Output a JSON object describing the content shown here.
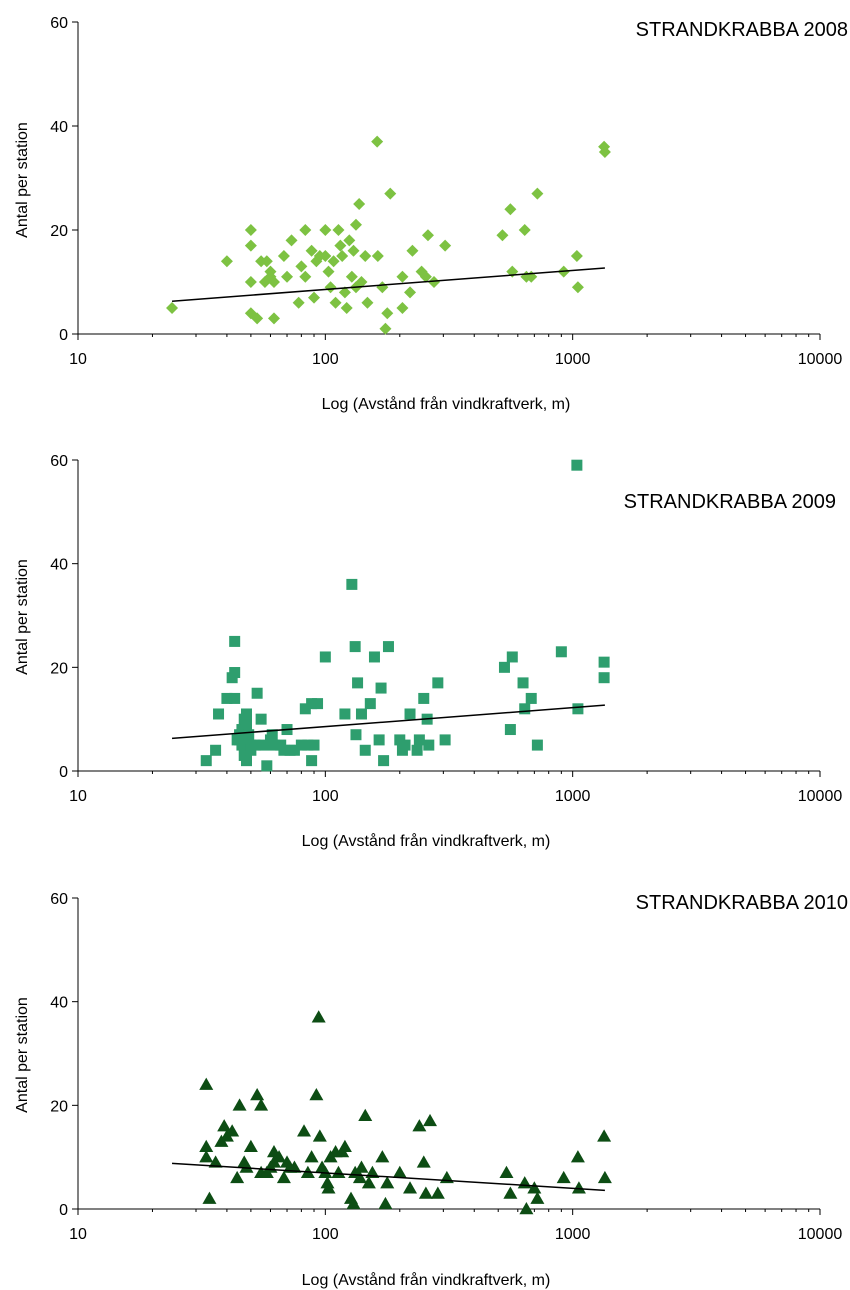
{
  "chart_data": [
    {
      "type": "scatter",
      "title": "STRANDKRABBA 2008",
      "xlabel": "Log (Avstånd från vindkraftverk, m)",
      "ylabel": "Antal per station",
      "x_scale": "log",
      "xlim": [
        10,
        10000
      ],
      "ylim": [
        0,
        60
      ],
      "x_ticks": [
        "10",
        "100",
        "1000",
        "10000"
      ],
      "y_ticks": [
        "0",
        "20",
        "40",
        "60"
      ],
      "marker": "diamond",
      "color": "#7dc242",
      "trendline": [
        [
          24,
          6.3
        ],
        [
          1350,
          12.7
        ]
      ],
      "points": [
        [
          24,
          5
        ],
        [
          40,
          14
        ],
        [
          50,
          20
        ],
        [
          50,
          17
        ],
        [
          50,
          10
        ],
        [
          50,
          4
        ],
        [
          53,
          3
        ],
        [
          55,
          14
        ],
        [
          57,
          10
        ],
        [
          58,
          14
        ],
        [
          60,
          11
        ],
        [
          60,
          12
        ],
        [
          62,
          10
        ],
        [
          62,
          3
        ],
        [
          68,
          15
        ],
        [
          70,
          11
        ],
        [
          73,
          18
        ],
        [
          78,
          6
        ],
        [
          80,
          13
        ],
        [
          83,
          20
        ],
        [
          83,
          11
        ],
        [
          88,
          16
        ],
        [
          90,
          7
        ],
        [
          92,
          14
        ],
        [
          95,
          15
        ],
        [
          100,
          20
        ],
        [
          100,
          15
        ],
        [
          103,
          12
        ],
        [
          105,
          9
        ],
        [
          108,
          14
        ],
        [
          110,
          6
        ],
        [
          113,
          20
        ],
        [
          115,
          17
        ],
        [
          117,
          15
        ],
        [
          120,
          8
        ],
        [
          122,
          5
        ],
        [
          125,
          18
        ],
        [
          128,
          11
        ],
        [
          130,
          16
        ],
        [
          133,
          21
        ],
        [
          133,
          9
        ],
        [
          137,
          25
        ],
        [
          140,
          10
        ],
        [
          145,
          15
        ],
        [
          148,
          6
        ],
        [
          162,
          37
        ],
        [
          163,
          15
        ],
        [
          170,
          9
        ],
        [
          175,
          1
        ],
        [
          178,
          4
        ],
        [
          183,
          27
        ],
        [
          205,
          11
        ],
        [
          205,
          5
        ],
        [
          220,
          8
        ],
        [
          225,
          16
        ],
        [
          245,
          12
        ],
        [
          255,
          11
        ],
        [
          260,
          19
        ],
        [
          275,
          10
        ],
        [
          305,
          17
        ],
        [
          520,
          19
        ],
        [
          560,
          24
        ],
        [
          570,
          12
        ],
        [
          640,
          20
        ],
        [
          650,
          11
        ],
        [
          680,
          11
        ],
        [
          720,
          27
        ],
        [
          920,
          12
        ],
        [
          1040,
          15
        ],
        [
          1050,
          9
        ],
        [
          1340,
          36
        ],
        [
          1350,
          35
        ]
      ]
    },
    {
      "type": "scatter",
      "title": "STRANDKRABBA 2009",
      "xlabel": "Log (Avstånd från vindkraftverk, m)",
      "ylabel": "Antal per station",
      "x_scale": "log",
      "xlim": [
        10,
        10000
      ],
      "ylim": [
        0,
        60
      ],
      "x_ticks": [
        "10",
        "100",
        "1000",
        "10000"
      ],
      "y_ticks": [
        "0",
        "20",
        "40",
        "60"
      ],
      "marker": "square",
      "color": "#2e9e6e",
      "trendline": [
        [
          24,
          6.3
        ],
        [
          1350,
          12.7
        ]
      ],
      "points": [
        [
          33,
          2
        ],
        [
          36,
          4
        ],
        [
          37,
          11
        ],
        [
          40,
          14
        ],
        [
          42,
          18
        ],
        [
          43,
          25
        ],
        [
          43,
          19
        ],
        [
          43,
          14
        ],
        [
          44,
          6
        ],
        [
          45,
          7
        ],
        [
          45,
          6
        ],
        [
          46,
          5
        ],
        [
          46,
          8
        ],
        [
          47,
          3
        ],
        [
          47,
          10
        ],
        [
          48,
          11
        ],
        [
          48,
          9
        ],
        [
          48,
          2
        ],
        [
          49,
          7
        ],
        [
          50,
          5
        ],
        [
          50,
          4
        ],
        [
          52,
          5
        ],
        [
          53,
          15
        ],
        [
          55,
          10
        ],
        [
          56,
          5
        ],
        [
          58,
          1
        ],
        [
          60,
          6
        ],
        [
          61,
          7
        ],
        [
          62,
          5
        ],
        [
          66,
          5
        ],
        [
          68,
          4
        ],
        [
          70,
          8
        ],
        [
          72,
          4
        ],
        [
          75,
          4
        ],
        [
          80,
          5
        ],
        [
          83,
          12
        ],
        [
          85,
          5
        ],
        [
          88,
          13
        ],
        [
          88,
          2
        ],
        [
          90,
          5
        ],
        [
          93,
          13
        ],
        [
          100,
          22
        ],
        [
          120,
          11
        ],
        [
          128,
          36
        ],
        [
          132,
          24
        ],
        [
          133,
          7
        ],
        [
          135,
          17
        ],
        [
          140,
          11
        ],
        [
          145,
          4
        ],
        [
          152,
          13
        ],
        [
          158,
          22
        ],
        [
          165,
          6
        ],
        [
          168,
          16
        ],
        [
          172,
          2
        ],
        [
          180,
          24
        ],
        [
          200,
          6
        ],
        [
          205,
          4
        ],
        [
          210,
          5
        ],
        [
          220,
          11
        ],
        [
          235,
          4
        ],
        [
          240,
          6
        ],
        [
          250,
          14
        ],
        [
          258,
          10
        ],
        [
          262,
          5
        ],
        [
          285,
          17
        ],
        [
          305,
          6
        ],
        [
          530,
          20
        ],
        [
          560,
          8
        ],
        [
          570,
          22
        ],
        [
          630,
          17
        ],
        [
          640,
          12
        ],
        [
          680,
          14
        ],
        [
          720,
          5
        ],
        [
          900,
          23
        ],
        [
          1040,
          59
        ],
        [
          1050,
          12
        ],
        [
          1340,
          21
        ],
        [
          1340,
          18
        ]
      ]
    },
    {
      "type": "scatter",
      "title": "STRANDKRABBA 2010",
      "xlabel": "Log (Avstånd från vindkraftverk, m)",
      "ylabel": "Antal per station",
      "x_scale": "log",
      "xlim": [
        10,
        10000
      ],
      "ylim": [
        0,
        60
      ],
      "x_ticks": [
        "10",
        "100",
        "1000",
        "10000"
      ],
      "y_ticks": [
        "0",
        "20",
        "40",
        "60"
      ],
      "marker": "triangle",
      "color": "#0d4d14",
      "trendline": [
        [
          24,
          8.8
        ],
        [
          1350,
          3.6
        ]
      ],
      "points": [
        [
          33,
          24
        ],
        [
          33,
          12
        ],
        [
          33,
          10
        ],
        [
          34,
          2
        ],
        [
          36,
          9
        ],
        [
          38,
          13
        ],
        [
          39,
          16
        ],
        [
          40,
          14
        ],
        [
          42,
          15
        ],
        [
          44,
          6
        ],
        [
          45,
          20
        ],
        [
          47,
          9
        ],
        [
          48,
          8
        ],
        [
          50,
          12
        ],
        [
          53,
          22
        ],
        [
          55,
          20
        ],
        [
          55,
          7
        ],
        [
          58,
          7
        ],
        [
          60,
          8
        ],
        [
          62,
          11
        ],
        [
          62,
          9
        ],
        [
          65,
          10
        ],
        [
          68,
          6
        ],
        [
          70,
          9
        ],
        [
          72,
          8
        ],
        [
          75,
          8
        ],
        [
          82,
          15
        ],
        [
          85,
          7
        ],
        [
          88,
          10
        ],
        [
          92,
          22
        ],
        [
          94,
          37
        ],
        [
          95,
          14
        ],
        [
          97,
          8
        ],
        [
          100,
          7
        ],
        [
          102,
          5
        ],
        [
          103,
          4
        ],
        [
          105,
          10
        ],
        [
          110,
          11
        ],
        [
          113,
          7
        ],
        [
          117,
          11
        ],
        [
          120,
          12
        ],
        [
          127,
          2
        ],
        [
          130,
          1
        ],
        [
          132,
          7
        ],
        [
          138,
          6
        ],
        [
          140,
          8
        ],
        [
          145,
          18
        ],
        [
          150,
          5
        ],
        [
          155,
          7
        ],
        [
          170,
          10
        ],
        [
          175,
          1
        ],
        [
          178,
          5
        ],
        [
          200,
          7
        ],
        [
          220,
          4
        ],
        [
          240,
          16
        ],
        [
          250,
          9
        ],
        [
          255,
          3
        ],
        [
          265,
          17
        ],
        [
          285,
          3
        ],
        [
          310,
          6
        ],
        [
          540,
          7
        ],
        [
          560,
          3
        ],
        [
          640,
          5
        ],
        [
          650,
          0
        ],
        [
          700,
          4
        ],
        [
          720,
          2
        ],
        [
          920,
          6
        ],
        [
          1050,
          10
        ],
        [
          1060,
          4
        ],
        [
          1340,
          14
        ],
        [
          1350,
          6
        ]
      ]
    }
  ]
}
